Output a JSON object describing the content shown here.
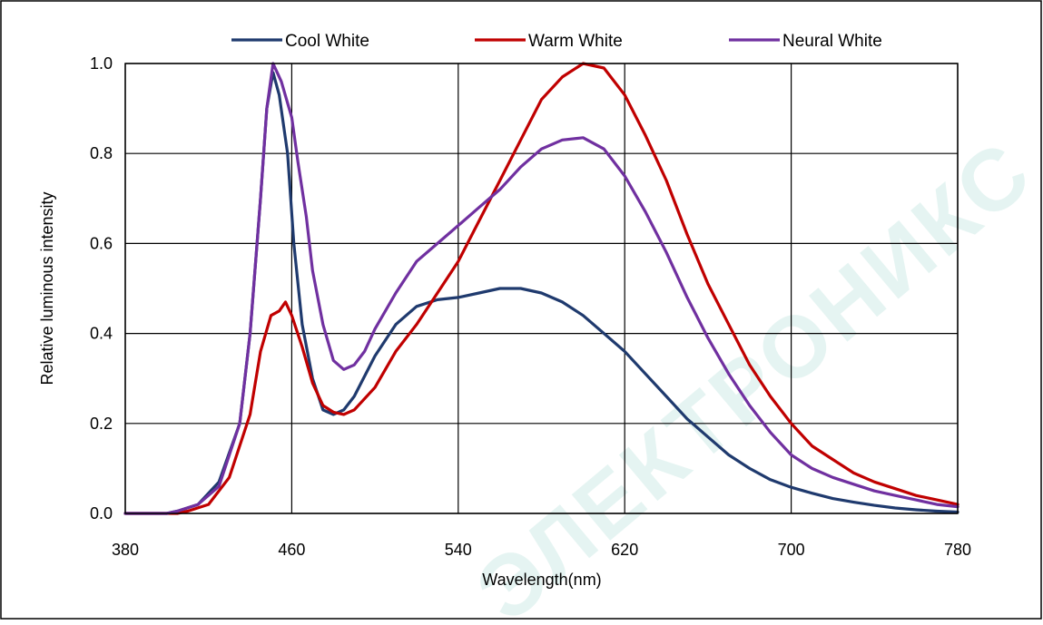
{
  "watermark": "ЭЛЕКТРОНИКС",
  "chart_data": {
    "type": "line",
    "title": "",
    "xlabel": "Wavelength(nm)",
    "ylabel": "Relative luminous intensity",
    "xlim": [
      380,
      780
    ],
    "ylim": [
      0.0,
      1.0
    ],
    "x_ticks": [
      380,
      460,
      540,
      620,
      700,
      780
    ],
    "y_ticks": [
      0.0,
      0.2,
      0.4,
      0.6,
      0.8,
      1.0
    ],
    "x_tick_labels": [
      "380",
      "460",
      "540",
      "620",
      "700",
      "780"
    ],
    "y_tick_labels": [
      "0.0",
      "0.2",
      "0.4",
      "0.6",
      "0.8",
      "1.0"
    ],
    "grid": true,
    "legend_position": "top",
    "series": [
      {
        "name": "Cool White",
        "color": "#1f3a6e",
        "points": [
          [
            380,
            0.0
          ],
          [
            400,
            0.0
          ],
          [
            405,
            0.005
          ],
          [
            415,
            0.02
          ],
          [
            425,
            0.07
          ],
          [
            435,
            0.2
          ],
          [
            440,
            0.4
          ],
          [
            445,
            0.7
          ],
          [
            448,
            0.9
          ],
          [
            451,
            0.98
          ],
          [
            454,
            0.93
          ],
          [
            458,
            0.8
          ],
          [
            461,
            0.6
          ],
          [
            465,
            0.42
          ],
          [
            470,
            0.3
          ],
          [
            475,
            0.23
          ],
          [
            480,
            0.22
          ],
          [
            485,
            0.23
          ],
          [
            490,
            0.26
          ],
          [
            500,
            0.35
          ],
          [
            510,
            0.42
          ],
          [
            520,
            0.46
          ],
          [
            530,
            0.475
          ],
          [
            540,
            0.48
          ],
          [
            550,
            0.49
          ],
          [
            560,
            0.5
          ],
          [
            570,
            0.5
          ],
          [
            580,
            0.49
          ],
          [
            590,
            0.47
          ],
          [
            600,
            0.44
          ],
          [
            610,
            0.4
          ],
          [
            620,
            0.36
          ],
          [
            630,
            0.31
          ],
          [
            640,
            0.26
          ],
          [
            650,
            0.21
          ],
          [
            660,
            0.17
          ],
          [
            670,
            0.13
          ],
          [
            680,
            0.1
          ],
          [
            690,
            0.075
          ],
          [
            700,
            0.058
          ],
          [
            710,
            0.045
          ],
          [
            720,
            0.033
          ],
          [
            730,
            0.025
          ],
          [
            740,
            0.018
          ],
          [
            750,
            0.012
          ],
          [
            760,
            0.008
          ],
          [
            770,
            0.005
          ],
          [
            780,
            0.003
          ]
        ]
      },
      {
        "name": "Warm White",
        "color": "#c00000",
        "points": [
          [
            380,
            0.0
          ],
          [
            405,
            0.0
          ],
          [
            410,
            0.005
          ],
          [
            420,
            0.02
          ],
          [
            430,
            0.08
          ],
          [
            440,
            0.22
          ],
          [
            445,
            0.36
          ],
          [
            450,
            0.44
          ],
          [
            454,
            0.45
          ],
          [
            457,
            0.47
          ],
          [
            460,
            0.44
          ],
          [
            465,
            0.37
          ],
          [
            470,
            0.29
          ],
          [
            475,
            0.24
          ],
          [
            480,
            0.225
          ],
          [
            485,
            0.22
          ],
          [
            490,
            0.23
          ],
          [
            500,
            0.28
          ],
          [
            510,
            0.36
          ],
          [
            520,
            0.42
          ],
          [
            530,
            0.49
          ],
          [
            540,
            0.56
          ],
          [
            550,
            0.65
          ],
          [
            560,
            0.74
          ],
          [
            570,
            0.83
          ],
          [
            580,
            0.92
          ],
          [
            590,
            0.97
          ],
          [
            600,
            1.0
          ],
          [
            610,
            0.99
          ],
          [
            620,
            0.93
          ],
          [
            630,
            0.84
          ],
          [
            640,
            0.74
          ],
          [
            650,
            0.62
          ],
          [
            660,
            0.51
          ],
          [
            670,
            0.42
          ],
          [
            680,
            0.33
          ],
          [
            690,
            0.26
          ],
          [
            700,
            0.2
          ],
          [
            710,
            0.15
          ],
          [
            720,
            0.12
          ],
          [
            730,
            0.09
          ],
          [
            740,
            0.07
          ],
          [
            750,
            0.055
          ],
          [
            760,
            0.04
          ],
          [
            770,
            0.03
          ],
          [
            780,
            0.02
          ]
        ]
      },
      {
        "name": "Neural White",
        "color": "#7030a0",
        "points": [
          [
            380,
            0.0
          ],
          [
            400,
            0.0
          ],
          [
            405,
            0.005
          ],
          [
            415,
            0.02
          ],
          [
            425,
            0.06
          ],
          [
            435,
            0.2
          ],
          [
            440,
            0.4
          ],
          [
            445,
            0.7
          ],
          [
            448,
            0.9
          ],
          [
            451,
            1.0
          ],
          [
            455,
            0.96
          ],
          [
            460,
            0.88
          ],
          [
            463,
            0.78
          ],
          [
            467,
            0.66
          ],
          [
            470,
            0.54
          ],
          [
            475,
            0.42
          ],
          [
            480,
            0.34
          ],
          [
            485,
            0.32
          ],
          [
            490,
            0.33
          ],
          [
            495,
            0.36
          ],
          [
            500,
            0.41
          ],
          [
            510,
            0.49
          ],
          [
            520,
            0.56
          ],
          [
            530,
            0.6
          ],
          [
            540,
            0.64
          ],
          [
            550,
            0.68
          ],
          [
            560,
            0.72
          ],
          [
            570,
            0.77
          ],
          [
            580,
            0.81
          ],
          [
            590,
            0.83
          ],
          [
            600,
            0.835
          ],
          [
            610,
            0.81
          ],
          [
            620,
            0.75
          ],
          [
            630,
            0.67
          ],
          [
            640,
            0.58
          ],
          [
            650,
            0.48
          ],
          [
            660,
            0.39
          ],
          [
            670,
            0.31
          ],
          [
            680,
            0.24
          ],
          [
            690,
            0.18
          ],
          [
            700,
            0.13
          ],
          [
            710,
            0.1
          ],
          [
            720,
            0.08
          ],
          [
            730,
            0.065
          ],
          [
            740,
            0.05
          ],
          [
            750,
            0.04
          ],
          [
            760,
            0.03
          ],
          [
            770,
            0.02
          ],
          [
            780,
            0.015
          ]
        ]
      }
    ]
  }
}
